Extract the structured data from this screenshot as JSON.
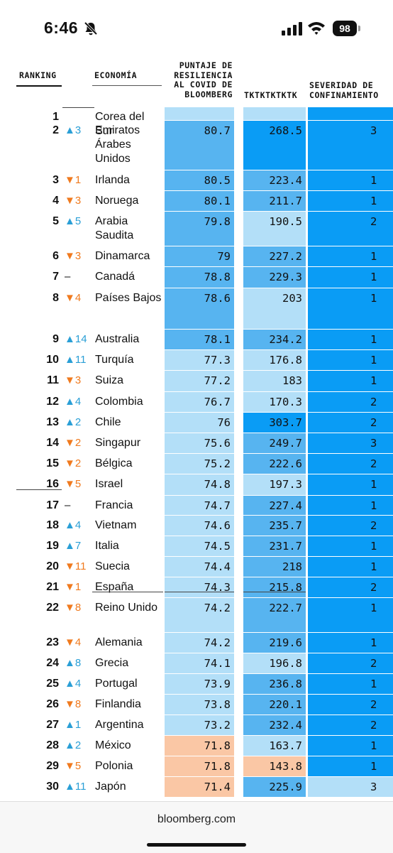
{
  "status_bar": {
    "time": "6:46",
    "battery": "98"
  },
  "table": {
    "headers": {
      "ranking": "RANKING",
      "economy": "ECONOMÍA",
      "score_lines": [
        "PUNTAJE DE",
        "RESILIENCIA",
        "AL COVID DE",
        "BLOOMBERG"
      ],
      "col3": "TKTKTKTKTK",
      "severity_lines": [
        "SEVERIDAD DE",
        "CONFINAMIENTO"
      ]
    },
    "rows": [
      {
        "rank": "1",
        "change": "",
        "dir": "none",
        "country": "Corea del Sur",
        "score": "",
        "tk": "",
        "sev": "",
        "score_color": "light",
        "tk_color": "light",
        "sev_color": "dark"
      },
      {
        "rank": "2",
        "change": "▲3",
        "dir": "up",
        "country": "Emiratos Árabes Unidos",
        "score": "80.7",
        "tk": "268.5",
        "sev": "3",
        "score_color": "mid",
        "tk_color": "dark",
        "sev_color": "dark"
      },
      {
        "rank": "3",
        "change": "▼1",
        "dir": "down",
        "country": "Irlanda",
        "score": "80.5",
        "tk": "223.4",
        "sev": "1",
        "score_color": "mid",
        "tk_color": "mid",
        "sev_color": "dark"
      },
      {
        "rank": "4",
        "change": "▼3",
        "dir": "down",
        "country": "Noruega",
        "score": "80.1",
        "tk": "211.7",
        "sev": "1",
        "score_color": "mid",
        "tk_color": "mid",
        "sev_color": "dark"
      },
      {
        "rank": "5",
        "change": "▲5",
        "dir": "up",
        "country": "Arabia Saudita",
        "score": "79.8",
        "tk": "190.5",
        "sev": "2",
        "score_color": "mid",
        "tk_color": "light",
        "sev_color": "dark"
      },
      {
        "rank": "6",
        "change": "▼3",
        "dir": "down",
        "country": "Dinamarca",
        "score": "79",
        "tk": "227.2",
        "sev": "1",
        "score_color": "mid",
        "tk_color": "mid",
        "sev_color": "dark"
      },
      {
        "rank": "7",
        "change": "–",
        "dir": "same",
        "country": "Canadá",
        "score": "78.8",
        "tk": "229.3",
        "sev": "1",
        "score_color": "mid",
        "tk_color": "mid",
        "sev_color": "dark"
      },
      {
        "rank": "8",
        "change": "▼4",
        "dir": "down",
        "country": "Países Bajos",
        "score": "78.6",
        "tk": "203",
        "sev": "1",
        "score_color": "mid",
        "tk_color": "light",
        "sev_color": "dark"
      },
      {
        "rank": "9",
        "change": "▲14",
        "dir": "up",
        "country": "Australia",
        "score": "78.1",
        "tk": "234.2",
        "sev": "1",
        "score_color": "mid",
        "tk_color": "mid",
        "sev_color": "dark"
      },
      {
        "rank": "10",
        "change": "▲11",
        "dir": "up",
        "country": "Turquía",
        "score": "77.3",
        "tk": "176.8",
        "sev": "1",
        "score_color": "light",
        "tk_color": "light",
        "sev_color": "dark"
      },
      {
        "rank": "11",
        "change": "▼3",
        "dir": "down",
        "country": "Suiza",
        "score": "77.2",
        "tk": "183",
        "sev": "1",
        "score_color": "light",
        "tk_color": "light",
        "sev_color": "dark"
      },
      {
        "rank": "12",
        "change": "▲4",
        "dir": "up",
        "country": "Colombia",
        "score": "76.7",
        "tk": "170.3",
        "sev": "2",
        "score_color": "light",
        "tk_color": "light",
        "sev_color": "dark"
      },
      {
        "rank": "13",
        "change": "▲2",
        "dir": "up",
        "country": "Chile",
        "score": "76",
        "tk": "303.7",
        "sev": "2",
        "score_color": "light",
        "tk_color": "dark",
        "sev_color": "dark"
      },
      {
        "rank": "14",
        "change": "▼2",
        "dir": "down",
        "country": "Singapur",
        "score": "75.6",
        "tk": "249.7",
        "sev": "3",
        "score_color": "light",
        "tk_color": "mid",
        "sev_color": "dark"
      },
      {
        "rank": "15",
        "change": "▼2",
        "dir": "down",
        "country": "Bélgica",
        "score": "75.2",
        "tk": "222.6",
        "sev": "2",
        "score_color": "light",
        "tk_color": "mid",
        "sev_color": "dark"
      },
      {
        "rank": "16",
        "change": "▼5",
        "dir": "down",
        "country": "Israel",
        "score": "74.8",
        "tk": "197.3",
        "sev": "1",
        "score_color": "light",
        "tk_color": "light",
        "sev_color": "dark"
      },
      {
        "rank": "17",
        "change": "–",
        "dir": "same",
        "country": "Francia",
        "score": "74.7",
        "tk": "227.4",
        "sev": "1",
        "score_color": "light",
        "tk_color": "mid",
        "sev_color": "dark"
      },
      {
        "rank": "18",
        "change": "▲4",
        "dir": "up",
        "country": "Vietnam",
        "score": "74.6",
        "tk": "235.7",
        "sev": "2",
        "score_color": "light",
        "tk_color": "mid",
        "sev_color": "dark"
      },
      {
        "rank": "19",
        "change": "▲7",
        "dir": "up",
        "country": "Italia",
        "score": "74.5",
        "tk": "231.7",
        "sev": "1",
        "score_color": "light",
        "tk_color": "mid",
        "sev_color": "dark"
      },
      {
        "rank": "20",
        "change": "▼11",
        "dir": "down",
        "country": "Suecia",
        "score": "74.4",
        "tk": "218",
        "sev": "1",
        "score_color": "light",
        "tk_color": "mid",
        "sev_color": "dark"
      },
      {
        "rank": "21",
        "change": "▼1",
        "dir": "down",
        "country": "España",
        "score": "74.3",
        "tk": "215.8",
        "sev": "2",
        "score_color": "light",
        "tk_color": "mid",
        "sev_color": "dark"
      },
      {
        "rank": "22",
        "change": "▼8",
        "dir": "down",
        "country": "Reino Unido",
        "score": "74.2",
        "tk": "222.7",
        "sev": "1",
        "score_color": "light",
        "tk_color": "mid",
        "sev_color": "dark"
      },
      {
        "rank": "23",
        "change": "▼4",
        "dir": "down",
        "country": "Alemania",
        "score": "74.2",
        "tk": "219.6",
        "sev": "1",
        "score_color": "light",
        "tk_color": "mid",
        "sev_color": "dark"
      },
      {
        "rank": "24",
        "change": "▲8",
        "dir": "up",
        "country": "Grecia",
        "score": "74.1",
        "tk": "196.8",
        "sev": "2",
        "score_color": "light",
        "tk_color": "light",
        "sev_color": "dark"
      },
      {
        "rank": "25",
        "change": "▲4",
        "dir": "up",
        "country": "Portugal",
        "score": "73.9",
        "tk": "236.8",
        "sev": "1",
        "score_color": "light",
        "tk_color": "mid",
        "sev_color": "dark"
      },
      {
        "rank": "26",
        "change": "▼8",
        "dir": "down",
        "country": "Finlandia",
        "score": "73.8",
        "tk": "220.1",
        "sev": "2",
        "score_color": "light",
        "tk_color": "mid",
        "sev_color": "dark"
      },
      {
        "rank": "27",
        "change": "▲1",
        "dir": "up",
        "country": "Argentina",
        "score": "73.2",
        "tk": "232.4",
        "sev": "2",
        "score_color": "light",
        "tk_color": "mid",
        "sev_color": "dark"
      },
      {
        "rank": "28",
        "change": "▲2",
        "dir": "up",
        "country": "México",
        "score": "71.8",
        "tk": "163.7",
        "sev": "1",
        "score_color": "peach",
        "tk_color": "light",
        "sev_color": "dark"
      },
      {
        "rank": "29",
        "change": "▼5",
        "dir": "down",
        "country": "Polonia",
        "score": "71.8",
        "tk": "143.8",
        "sev": "1",
        "score_color": "peach",
        "tk_color": "peach",
        "sev_color": "dark"
      },
      {
        "rank": "30",
        "change": "▲11",
        "dir": "up",
        "country": "Japón",
        "score": "71.4",
        "tk": "225.9",
        "sev": "3",
        "score_color": "peach",
        "tk_color": "mid",
        "sev_color": "light"
      }
    ]
  },
  "footer": {
    "url": "bloomberg.com"
  },
  "colors": {
    "light": "#b3dff8",
    "mid": "#57b4f0",
    "dark": "#0a9cf5",
    "peach": "#fac7a5",
    "up": "#2a9fd6",
    "down": "#f07a1e"
  }
}
